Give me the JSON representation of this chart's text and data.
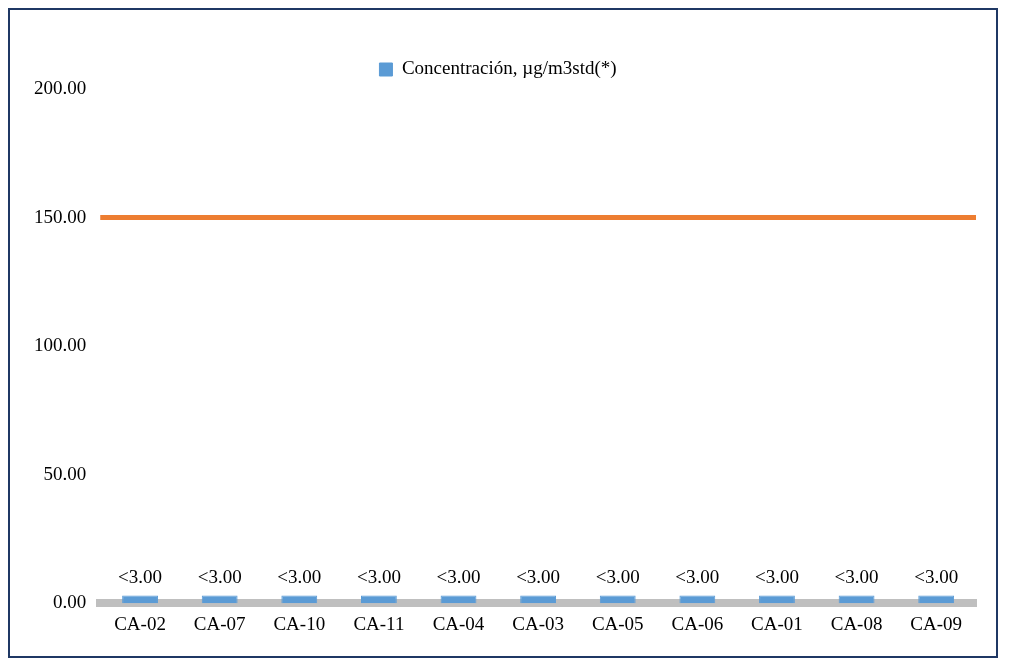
{
  "chart_data": {
    "type": "bar",
    "categories": [
      "CA-02",
      "CA-07",
      "CA-10",
      "CA-11",
      "CA-04",
      "CA-03",
      "CA-05",
      "CA-06",
      "CA-01",
      "CA-08",
      "CA-09"
    ],
    "series": [
      {
        "name": "Concentración, µg/m3std(*)",
        "color": "#5b9bd5",
        "values": [
          3,
          3,
          3,
          3,
          3,
          3,
          3,
          3,
          3,
          3,
          3
        ],
        "value_labels": [
          "<3.00",
          "<3.00",
          "<3.00",
          "<3.00",
          "<3.00",
          "<3.00",
          "<3.00",
          "<3.00",
          "<3.00",
          "<3.00",
          "<3.00"
        ]
      }
    ],
    "ylim": [
      0,
      200
    ],
    "yticks": [
      {
        "value": 0,
        "label": "0.00"
      },
      {
        "value": 50,
        "label": "50.00"
      },
      {
        "value": 100,
        "label": "100.00"
      },
      {
        "value": 150,
        "label": "150.00"
      },
      {
        "value": 200,
        "label": "200.00"
      }
    ],
    "ref_lines": [
      {
        "axis": "y",
        "value": 150,
        "color": "#ed7d31"
      }
    ],
    "grid": false,
    "legend": "top"
  }
}
